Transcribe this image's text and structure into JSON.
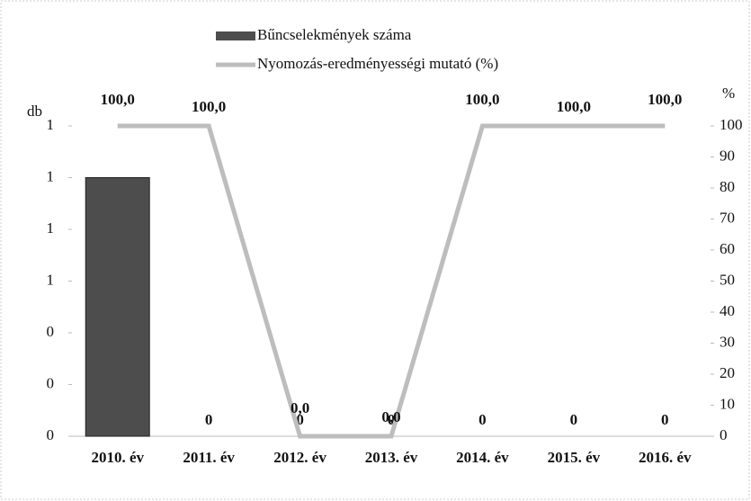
{
  "chart_data": {
    "type": "bar-line",
    "categories": [
      "2010. év",
      "2011. év",
      "2012. év",
      "2013. év",
      "2014. év",
      "2015. év",
      "2016. év"
    ],
    "y_label": "db",
    "y2_label": "%",
    "ylim": [
      0,
      1.2
    ],
    "yticks": [
      {
        "value": 0,
        "label": "0"
      },
      {
        "value": 0.2,
        "label": "0"
      },
      {
        "value": 0.4,
        "label": "0"
      },
      {
        "value": 0.6,
        "label": "1"
      },
      {
        "value": 0.8,
        "label": "1"
      },
      {
        "value": 1,
        "label": "1"
      },
      {
        "value": 1.2,
        "label": "1"
      }
    ],
    "y2lim": [
      0,
      100
    ],
    "y2ticks": [
      0,
      10,
      20,
      30,
      40,
      50,
      60,
      70,
      80,
      90,
      100
    ],
    "series": [
      {
        "name": "Bűncselekmények száma",
        "type": "bar",
        "color": "#4d4d4d",
        "values": [
          1,
          0,
          0,
          0,
          0,
          0,
          0
        ],
        "value_labels": [
          null,
          "0",
          "0",
          "0",
          "0",
          "0",
          "0"
        ]
      },
      {
        "name": "Nyomozás-eredményességi mutató (%)",
        "type": "line",
        "axis": "y2",
        "color": "#bdbdbd",
        "values": [
          100,
          100,
          0,
          0,
          100,
          100,
          100
        ],
        "value_labels": [
          "100,0",
          "100,0",
          "0,0",
          "0,0",
          "100,0",
          "100,0",
          "100,0"
        ]
      }
    ]
  }
}
